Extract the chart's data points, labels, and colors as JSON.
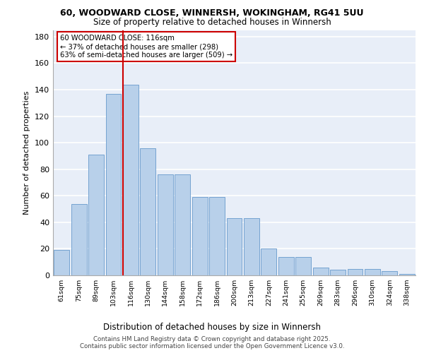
{
  "title_line1": "60, WOODWARD CLOSE, WINNERSH, WOKINGHAM, RG41 5UU",
  "title_line2": "Size of property relative to detached houses in Winnersh",
  "xlabel": "Distribution of detached houses by size in Winnersh",
  "ylabel": "Number of detached properties",
  "categories": [
    "61sqm",
    "75sqm",
    "89sqm",
    "103sqm",
    "116sqm",
    "130sqm",
    "144sqm",
    "158sqm",
    "172sqm",
    "186sqm",
    "200sqm",
    "213sqm",
    "227sqm",
    "241sqm",
    "255sqm",
    "269sqm",
    "283sqm",
    "296sqm",
    "310sqm",
    "324sqm",
    "338sqm"
  ],
  "values": [
    19,
    54,
    91,
    137,
    144,
    96,
    76,
    76,
    59,
    59,
    43,
    43,
    20,
    14,
    14,
    6,
    4,
    5,
    5,
    3,
    1
  ],
  "bar_color": "#b8d0ea",
  "bar_edge_color": "#6699cc",
  "red_line_index": 4,
  "red_line_label": "60 WOODWARD CLOSE: 116sqm",
  "annotation_line1": "← 37% of detached houses are smaller (298)",
  "annotation_line2": "63% of semi-detached houses are larger (509) →",
  "annotation_box_color": "#ffffff",
  "annotation_box_edge": "#cc0000",
  "ylim": [
    0,
    185
  ],
  "yticks": [
    0,
    20,
    40,
    60,
    80,
    100,
    120,
    140,
    160,
    180
  ],
  "footer_line1": "Contains HM Land Registry data © Crown copyright and database right 2025.",
  "footer_line2": "Contains public sector information licensed under the Open Government Licence v3.0.",
  "bg_color": "#e8eef8",
  "grid_color": "#ffffff"
}
